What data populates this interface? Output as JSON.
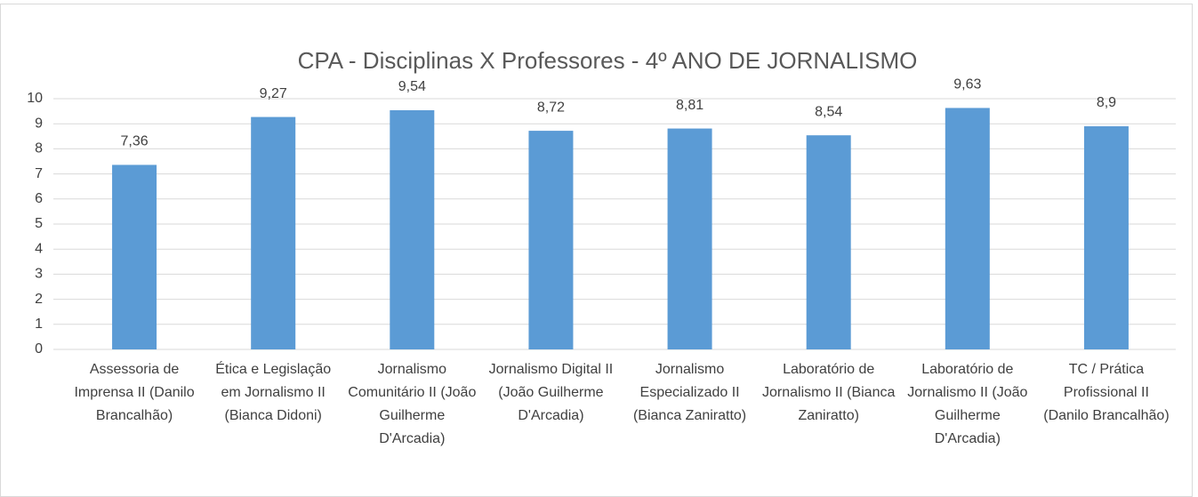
{
  "chart_data": {
    "type": "bar",
    "title": "CPA - Disciplinas X Professores - 4º ANO DE JORNALISMO",
    "categories": [
      "Assessoria de Imprensa II (Danilo Brancalhão)",
      "Ética e Legislação em Jornalismo II (Bianca Didoni)",
      "Jornalismo Comunitário II (João Guilherme D'Arcadia)",
      "Jornalismo Digital II (João Guilherme D'Arcadia)",
      "Jornalismo Especializado II (Bianca Zaniratto)",
      "Laboratório de Jornalismo II (Bianca Zaniratto)",
      "Laboratório de Jornalismo II (João Guilherme D'Arcadia)",
      "TC / Prática Profissional II (Danilo Brancalhão)"
    ],
    "values": [
      7.36,
      9.27,
      9.54,
      8.72,
      8.81,
      8.54,
      9.63,
      8.9
    ],
    "value_labels": [
      "7,36",
      "9,27",
      "9,54",
      "8,72",
      "8,81",
      "8,54",
      "9,63",
      "8,9"
    ],
    "color": "#5b9bd5",
    "ylim": [
      0,
      10
    ],
    "yticks": [
      0,
      1,
      2,
      3,
      4,
      5,
      6,
      7,
      8,
      9,
      10
    ],
    "grid": true
  }
}
